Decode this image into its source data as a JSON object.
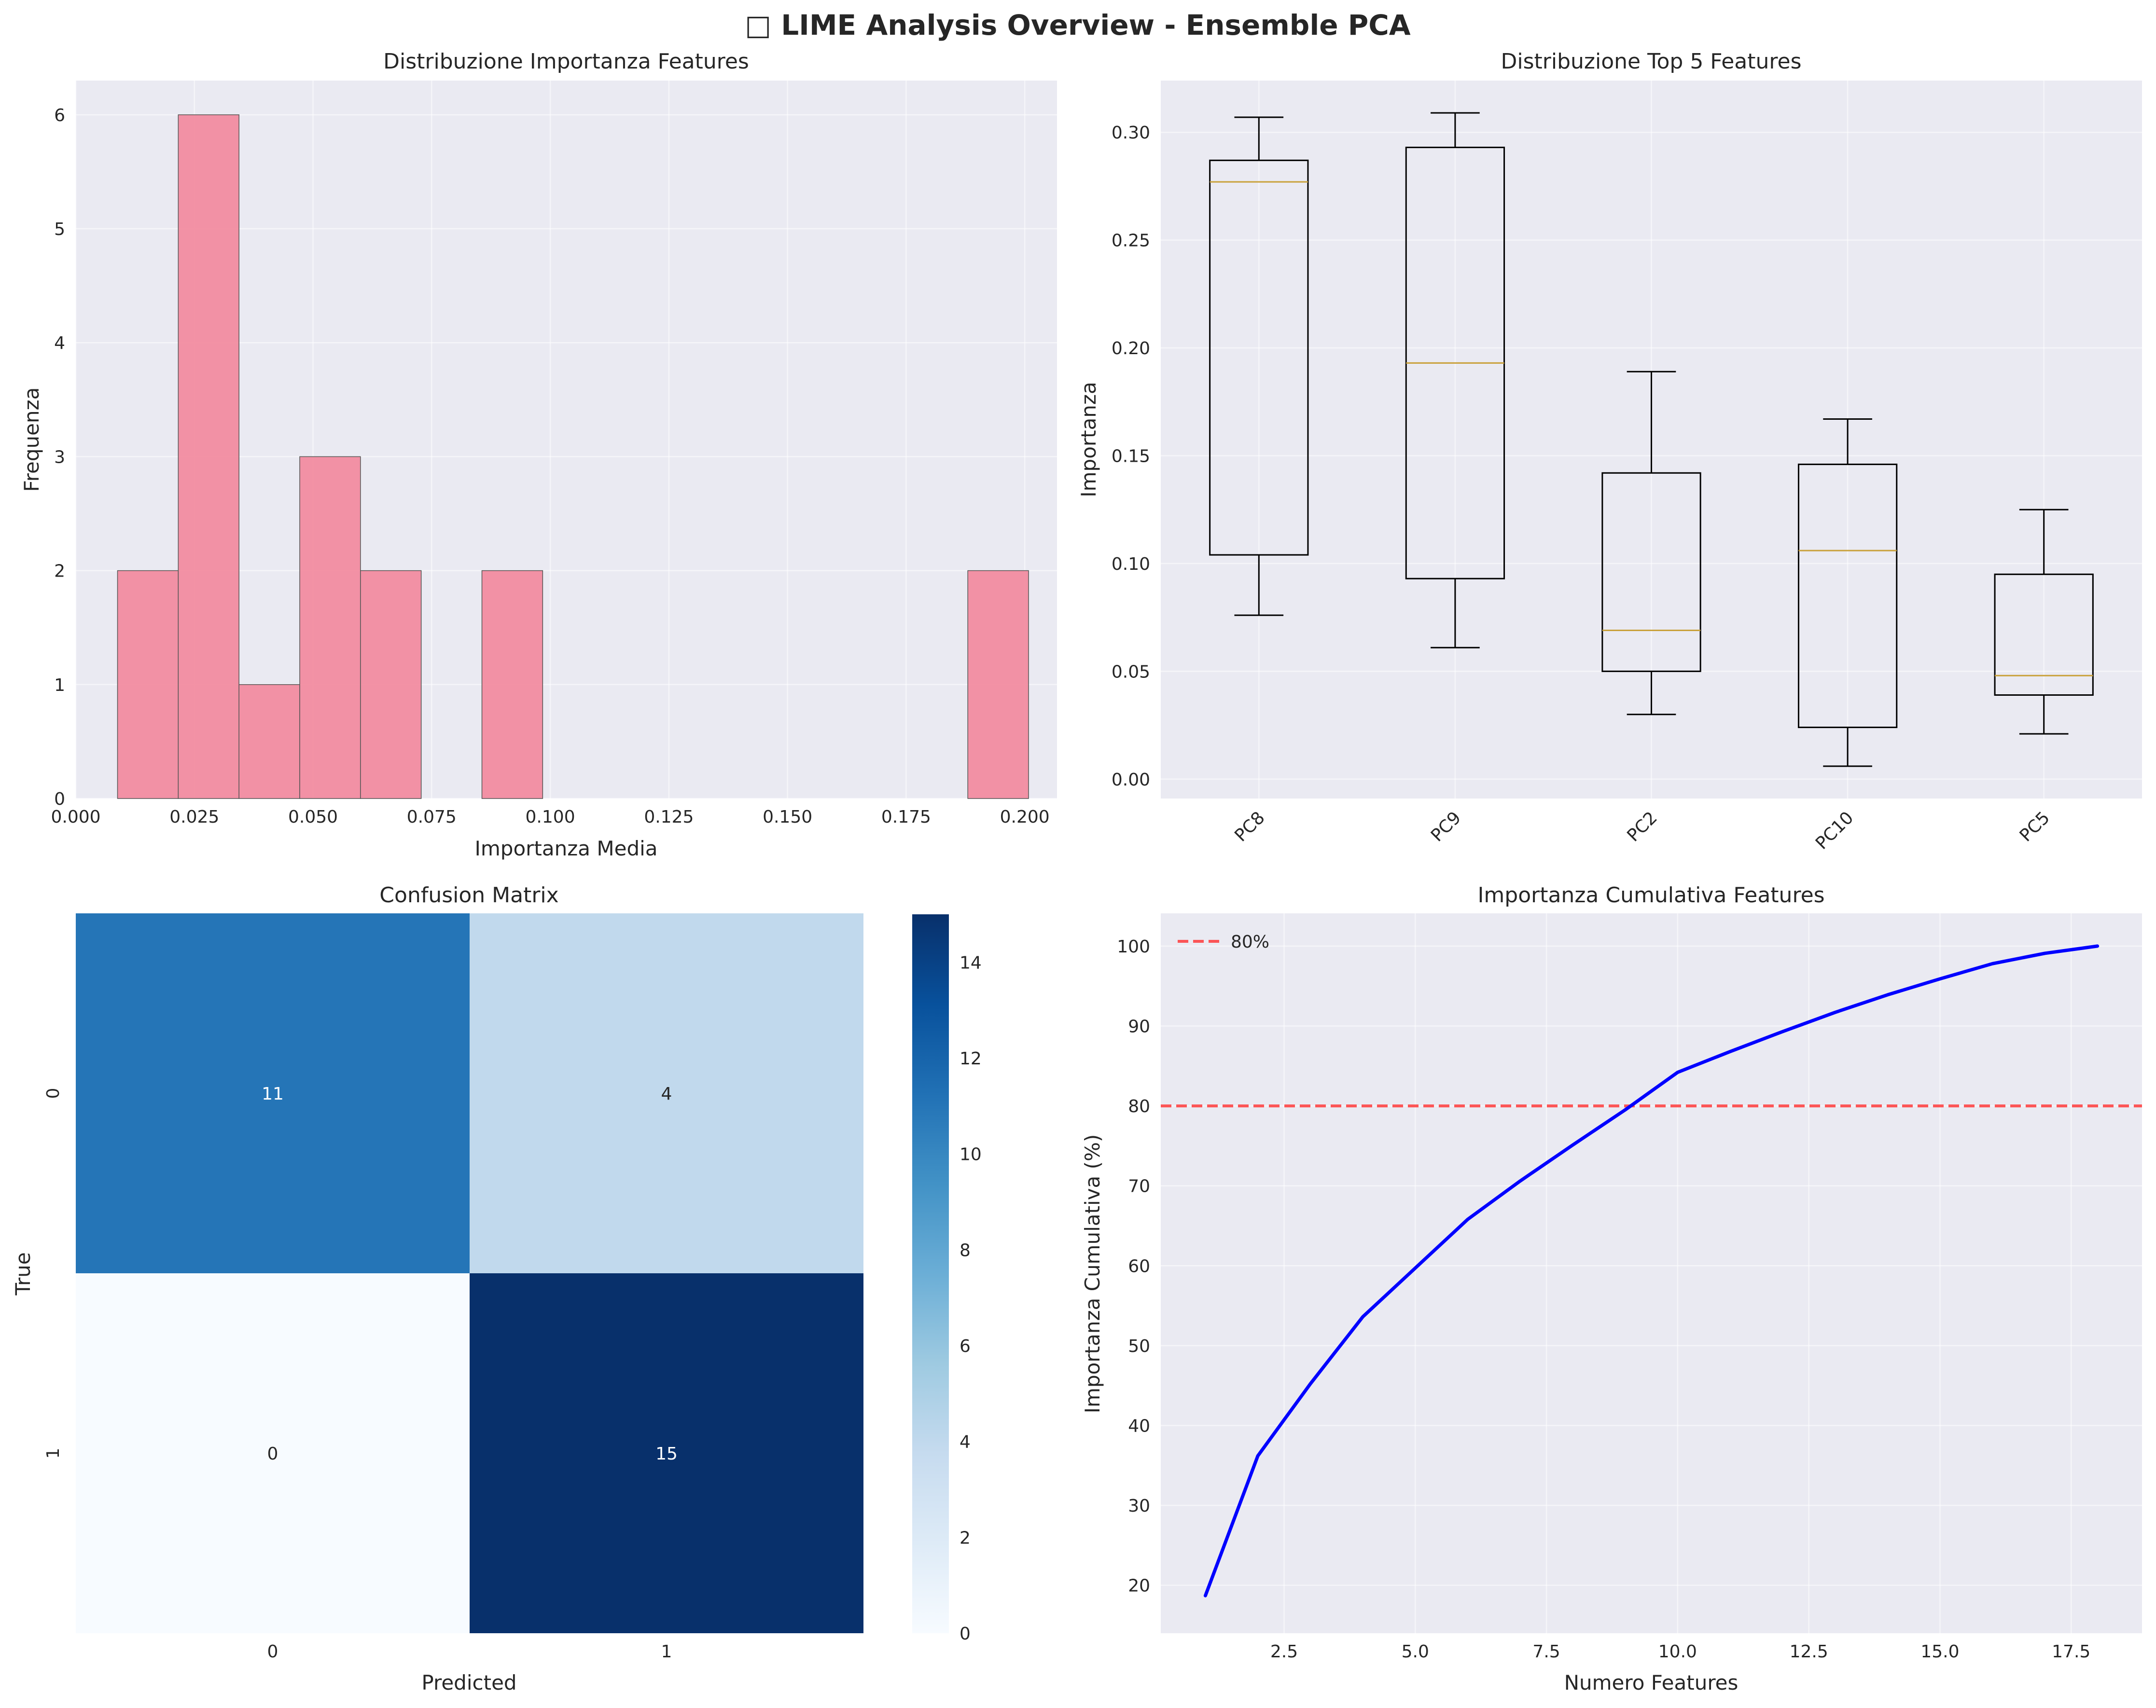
{
  "figure_title": "□ LIME Analysis Overview - Ensemble PCA",
  "chart_data": [
    {
      "type": "bar",
      "subtype": "histogram",
      "title": "Distribuzione Importanza Features",
      "xlabel": "Importanza Media",
      "ylabel": "Frequenza",
      "bins": [
        {
          "start": 0.0088,
          "end": 0.0216,
          "count": 2
        },
        {
          "start": 0.0216,
          "end": 0.0344,
          "count": 6
        },
        {
          "start": 0.0344,
          "end": 0.0472,
          "count": 1
        },
        {
          "start": 0.0472,
          "end": 0.06,
          "count": 3
        },
        {
          "start": 0.06,
          "end": 0.0728,
          "count": 2
        },
        {
          "start": 0.0728,
          "end": 0.0856,
          "count": 0
        },
        {
          "start": 0.0856,
          "end": 0.0984,
          "count": 2
        },
        {
          "start": 0.0984,
          "end": 0.1112,
          "count": 0
        },
        {
          "start": 0.1112,
          "end": 0.124,
          "count": 0
        },
        {
          "start": 0.124,
          "end": 0.1368,
          "count": 0
        },
        {
          "start": 0.1368,
          "end": 0.1496,
          "count": 0
        },
        {
          "start": 0.1496,
          "end": 0.1624,
          "count": 0
        },
        {
          "start": 0.1624,
          "end": 0.1752,
          "count": 0
        },
        {
          "start": 0.1752,
          "end": 0.188,
          "count": 0
        },
        {
          "start": 0.188,
          "end": 0.2008,
          "count": 2
        }
      ],
      "xlim": [
        0.0,
        0.2068
      ],
      "ylim": [
        0,
        6.3
      ],
      "xticks": [
        "0.000",
        "0.025",
        "0.050",
        "0.075",
        "0.100",
        "0.125",
        "0.150",
        "0.175",
        "0.200"
      ],
      "yticks": [
        "0",
        "1",
        "2",
        "3",
        "4",
        "5",
        "6"
      ],
      "color": "#f28ca0",
      "grid": true
    },
    {
      "type": "box",
      "title": "Distribuzione Top 5 Features",
      "xlabel": "",
      "ylabel": "Importanza",
      "categories": [
        "PC8",
        "PC9",
        "PC2",
        "PC10",
        "PC5"
      ],
      "boxes": [
        {
          "whisker_low": 0.076,
          "q1": 0.104,
          "median": 0.277,
          "q3": 0.287,
          "whisker_high": 0.307
        },
        {
          "whisker_low": 0.061,
          "q1": 0.093,
          "median": 0.193,
          "q3": 0.293,
          "whisker_high": 0.309
        },
        {
          "whisker_low": 0.03,
          "q1": 0.05,
          "median": 0.069,
          "q3": 0.142,
          "whisker_high": 0.189
        },
        {
          "whisker_low": 0.006,
          "q1": 0.024,
          "median": 0.106,
          "q3": 0.146,
          "whisker_high": 0.167
        },
        {
          "whisker_low": 0.021,
          "q1": 0.039,
          "median": 0.048,
          "q3": 0.095,
          "whisker_high": 0.125
        }
      ],
      "ylim": [
        -0.009,
        0.324
      ],
      "yticks": [
        "0.00",
        "0.05",
        "0.10",
        "0.15",
        "0.20",
        "0.25",
        "0.30"
      ],
      "median_color": "#c9a13a",
      "grid": true
    },
    {
      "type": "heatmap",
      "title": "Confusion Matrix",
      "xlabel": "Predicted",
      "ylabel": "True",
      "x_labels": [
        "0",
        "1"
      ],
      "y_labels": [
        "0",
        "1"
      ],
      "values": [
        [
          11,
          4
        ],
        [
          0,
          15
        ]
      ],
      "colormap": "Blues",
      "colorbar_range": [
        0,
        15
      ],
      "colorbar_ticks": [
        "0",
        "2",
        "4",
        "6",
        "8",
        "10",
        "12",
        "14"
      ]
    },
    {
      "type": "line",
      "title": "Importanza Cumulativa Features",
      "xlabel": "Numero Features",
      "ylabel": "Importanza Cumulativa (%)",
      "x": [
        1,
        2,
        3,
        4,
        5,
        6,
        7,
        8,
        9,
        10,
        11,
        12,
        13,
        14,
        15,
        16,
        17,
        18
      ],
      "series": [
        {
          "values": [
            18.7,
            36.2,
            45.2,
            53.6,
            59.7,
            65.8,
            70.6,
            75.1,
            79.5,
            84.2,
            86.8,
            89.3,
            91.7,
            93.9,
            95.9,
            97.8,
            99.1,
            100.0
          ],
          "color": "#0000ff"
        }
      ],
      "reference_line": {
        "y": 80,
        "label": "80%",
        "color": "#ff3b3b",
        "style": "dashed"
      },
      "xlim": [
        0.15,
        18.85
      ],
      "ylim": [
        14.0,
        104.1
      ],
      "xticks": [
        "2.5",
        "5.0",
        "7.5",
        "10.0",
        "12.5",
        "15.0",
        "17.5"
      ],
      "yticks": [
        "20",
        "30",
        "40",
        "50",
        "60",
        "70",
        "80",
        "90",
        "100"
      ],
      "legend_position": "top-left",
      "grid": true
    }
  ]
}
